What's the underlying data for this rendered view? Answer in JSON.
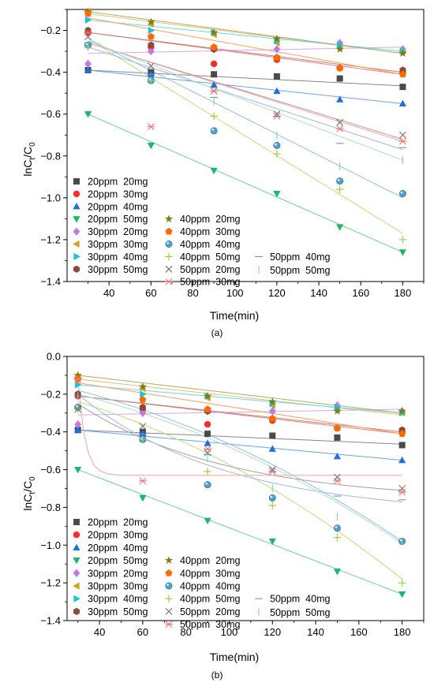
{
  "chart_data": [
    {
      "type": "scatter",
      "panel_label": "(a)",
      "xlabel": "Time(min)",
      "ylabel": "lnCt/C0",
      "xlim": [
        20,
        190
      ],
      "ylim": [
        -1.4,
        -0.1
      ],
      "xticks": [
        40,
        60,
        80,
        100,
        120,
        140,
        160,
        180
      ],
      "yticks": [
        -1.4,
        -1.2,
        -1.0,
        -0.8,
        -0.6,
        -0.4,
        -0.2
      ],
      "ytick_labels": [
        "−1.4",
        "−1.2",
        "−1.0",
        "−0.8",
        "−0.6",
        "−0.4",
        "−0.2"
      ],
      "grid": false,
      "legend_position": "bottom-left",
      "x": [
        30,
        60,
        90,
        120,
        150,
        180
      ],
      "series": [
        {
          "name": "20ppm  20mg",
          "marker": "square",
          "color": "#4a4a4a",
          "values": [
            -0.39,
            -0.4,
            -0.41,
            -0.42,
            -0.43,
            -0.47
          ],
          "fit": [
            -0.39,
            -0.465
          ]
        },
        {
          "name": "20ppm  30mg",
          "marker": "circle",
          "color": "#ff2a2a",
          "values": [
            -0.21,
            -0.28,
            -0.36,
            -0.34,
            -0.38,
            -0.4
          ],
          "fit": [
            -0.21,
            -0.41
          ]
        },
        {
          "name": "20ppm  40mg",
          "marker": "triangle-up",
          "color": "#1f6fe0",
          "values": [
            -0.39,
            -0.41,
            -0.46,
            -0.49,
            -0.53,
            -0.55
          ],
          "fit": [
            -0.39,
            -0.55
          ]
        },
        {
          "name": "20ppm  50mg",
          "marker": "triangle-down",
          "color": "#1cb86a",
          "values": [
            -0.6,
            -0.75,
            -0.87,
            -0.98,
            -1.14,
            -1.26
          ],
          "fit": [
            -0.6,
            -1.26
          ]
        },
        {
          "name": "30ppm  20mg",
          "marker": "diamond",
          "color": "#c07ae6",
          "values": [
            -0.36,
            -0.3,
            -0.29,
            -0.29,
            -0.26,
            -0.29
          ],
          "fit": [
            -0.31,
            -0.28
          ]
        },
        {
          "name": "30ppm  30mg",
          "marker": "triangle-left",
          "color": "#d4a017",
          "values": [
            -0.11,
            -0.17,
            -0.22,
            -0.26,
            -0.28,
            -0.3
          ],
          "fit": [
            -0.12,
            -0.31
          ]
        },
        {
          "name": "30ppm  40mg",
          "marker": "triangle-right",
          "color": "#14c6d8",
          "values": [
            -0.15,
            -0.2,
            -0.21,
            -0.25,
            -0.27,
            -0.3
          ],
          "fit": [
            -0.15,
            -0.3
          ]
        },
        {
          "name": "30ppm  50mg",
          "marker": "hexagon",
          "color": "#8b4a3a",
          "values": [
            -0.2,
            -0.27,
            -0.29,
            -0.33,
            -0.38,
            -0.39
          ],
          "fit": [
            -0.21,
            -0.4
          ]
        },
        {
          "name": "40ppm  20mg",
          "marker": "star",
          "color": "#7d7d16",
          "values": [
            -0.11,
            -0.16,
            -0.21,
            -0.24,
            -0.29,
            -0.31
          ],
          "fit": [
            -0.11,
            -0.31
          ]
        },
        {
          "name": "40ppm  30mg",
          "marker": "pentagon",
          "color": "#ff6a00",
          "values": [
            -0.12,
            -0.23,
            -0.28,
            -0.33,
            -0.38,
            -0.41
          ],
          "fit": [
            -0.14,
            -0.41
          ]
        },
        {
          "name": "40ppm  40mg",
          "marker": "sphere",
          "color": "#4f9fcf",
          "values": [
            -0.27,
            -0.44,
            -0.68,
            -0.75,
            -0.92,
            -0.98
          ],
          "fit": [
            -0.24,
            -1.0
          ]
        },
        {
          "name": "40ppm  50mg",
          "marker": "plus",
          "color": "#9acd32",
          "values": [
            -0.28,
            -0.44,
            -0.61,
            -0.79,
            -0.96,
            -1.2
          ],
          "fit": [
            -0.24,
            -1.17
          ]
        },
        {
          "name": "50ppm  20mg",
          "marker": "x",
          "color": "#6f6f6f",
          "values": [
            -0.23,
            -0.37,
            -0.49,
            -0.6,
            -0.64,
            -0.7
          ],
          "fit": [
            -0.26,
            -0.72
          ]
        },
        {
          "name": "50ppm  30mg",
          "marker": "asterisk",
          "color": "#ff6b6b",
          "values": [
            -0.21,
            -0.66,
            -0.49,
            -0.61,
            -0.67,
            -0.73
          ],
          "fit": [
            -0.26,
            -0.73
          ]
        },
        {
          "name": "50ppm  40mg",
          "marker": "hline",
          "color": "#6a8fe0",
          "values": [
            -0.26,
            -0.41,
            -0.52,
            -0.61,
            -0.74,
            -0.76
          ],
          "fit": [
            -0.28,
            -0.77
          ]
        },
        {
          "name": "50ppm  50mg",
          "marker": "vline",
          "color": "#7ed3a3",
          "values": [
            -0.27,
            -0.44,
            -0.54,
            -0.7,
            -0.85,
            -0.82
          ],
          "fit": [
            -0.25,
            -0.82
          ]
        }
      ]
    },
    {
      "type": "scatter",
      "panel_label": "(b)",
      "xlabel": "Time(min)",
      "ylabel": "lnCt/C0",
      "xlim": [
        25,
        190
      ],
      "ylim": [
        -1.4,
        0.0
      ],
      "xticks": [
        40,
        60,
        80,
        100,
        120,
        140,
        160,
        180
      ],
      "yticks": [
        -1.4,
        -1.2,
        -1.0,
        -0.8,
        -0.6,
        -0.4,
        -0.2,
        0.0
      ],
      "ytick_labels": [
        "−1.4",
        "−1.2",
        "−1.0",
        "−0.8",
        "−0.6",
        "−0.4",
        "−0.2",
        "0.0"
      ],
      "grid": false,
      "legend_position": "bottom-left",
      "x": [
        30,
        60,
        90,
        120,
        150,
        180
      ],
      "series": [
        {
          "name": "20ppm  20mg",
          "marker": "square",
          "color": "#4a4a4a",
          "values": [
            -0.39,
            -0.4,
            -0.41,
            -0.42,
            -0.43,
            -0.47
          ],
          "fit": [
            -0.39,
            -0.465
          ]
        },
        {
          "name": "20ppm  30mg",
          "marker": "circle",
          "color": "#ff2a2a",
          "values": [
            -0.21,
            -0.28,
            -0.36,
            -0.34,
            -0.38,
            -0.4
          ],
          "fit": [
            -0.21,
            -0.41
          ]
        },
        {
          "name": "20ppm  40mg",
          "marker": "triangle-up",
          "color": "#1f6fe0",
          "values": [
            -0.39,
            -0.41,
            -0.46,
            -0.49,
            -0.53,
            -0.55
          ],
          "fit": [
            -0.39,
            -0.55
          ]
        },
        {
          "name": "20ppm  50mg",
          "marker": "triangle-down",
          "color": "#1cb86a",
          "values": [
            -0.6,
            -0.75,
            -0.87,
            -0.98,
            -1.14,
            -1.26
          ],
          "fit": [
            -0.6,
            -1.26
          ]
        },
        {
          "name": "30ppm  20mg",
          "marker": "diamond",
          "color": "#c07ae6",
          "values": [
            -0.36,
            -0.3,
            -0.29,
            -0.29,
            -0.26,
            -0.29
          ],
          "fit": [
            -0.31,
            -0.28
          ]
        },
        {
          "name": "30ppm  30mg",
          "marker": "triangle-left",
          "color": "#d4a017",
          "values": [
            -0.11,
            -0.17,
            -0.22,
            -0.26,
            -0.28,
            -0.3
          ],
          "fit": [
            -0.12,
            -0.31
          ]
        },
        {
          "name": "30ppm  40mg",
          "marker": "triangle-right",
          "color": "#14c6d8",
          "values": [
            -0.15,
            -0.2,
            -0.21,
            -0.25,
            -0.27,
            -0.3
          ],
          "fit": [
            -0.15,
            -0.3
          ]
        },
        {
          "name": "30ppm  50mg",
          "marker": "hexagon",
          "color": "#8b4a3a",
          "values": [
            -0.2,
            -0.27,
            -0.29,
            -0.33,
            -0.38,
            -0.39
          ],
          "fit": [
            -0.21,
            -0.4
          ]
        },
        {
          "name": "40ppm  20mg",
          "marker": "star",
          "color": "#7d7d16",
          "values": [
            -0.1,
            -0.16,
            -0.21,
            -0.24,
            -0.29,
            -0.29
          ],
          "fit": [
            -0.1,
            -0.3
          ]
        },
        {
          "name": "40ppm  30mg",
          "marker": "pentagon",
          "color": "#ff6a00",
          "values": [
            -0.12,
            -0.23,
            -0.28,
            -0.33,
            -0.38,
            -0.41
          ],
          "fit": [
            -0.14,
            -0.41
          ]
        },
        {
          "name": "40ppm  40mg",
          "marker": "sphere",
          "color": "#4f9fcf",
          "values": [
            -0.27,
            -0.44,
            -0.68,
            -0.75,
            -0.91,
            -0.98
          ],
          "fit": [
            -0.18,
            -0.98
          ],
          "curve": "quadratic"
        },
        {
          "name": "40ppm  50mg",
          "marker": "plus",
          "color": "#9acd32",
          "values": [
            -0.28,
            -0.44,
            -0.61,
            -0.79,
            -0.96,
            -1.2
          ],
          "fit": [
            -0.24,
            -1.18
          ],
          "curve": "quadratic"
        },
        {
          "name": "50ppm  20mg",
          "marker": "x",
          "color": "#6f6f6f",
          "values": [
            -0.28,
            -0.37,
            -0.51,
            -0.6,
            -0.64,
            -0.7
          ],
          "fit": [
            -0.25,
            -0.71
          ],
          "curve": "exp"
        },
        {
          "name": "50ppm  30mg",
          "marker": "asterisk",
          "color": "#ff6b6b",
          "values": [
            -0.12,
            -0.66,
            -0.49,
            -0.61,
            -0.66,
            -0.72
          ],
          "fit": [
            -0.12,
            -0.63
          ],
          "curve": "fast-exp"
        },
        {
          "name": "50ppm  40mg",
          "marker": "hline",
          "color": "#6a8fe0",
          "values": [
            -0.21,
            -0.41,
            -0.52,
            -0.61,
            -0.74,
            -0.76
          ],
          "fit": [
            -0.2,
            -0.77
          ],
          "curve": "exp"
        },
        {
          "name": "50ppm  50mg",
          "marker": "vline",
          "color": "#7ed3a3",
          "values": [
            -0.21,
            -0.44,
            -0.54,
            -0.7,
            -0.85,
            -0.98
          ],
          "fit": [
            -0.2,
            -0.99
          ],
          "curve": "quadratic"
        }
      ]
    }
  ]
}
